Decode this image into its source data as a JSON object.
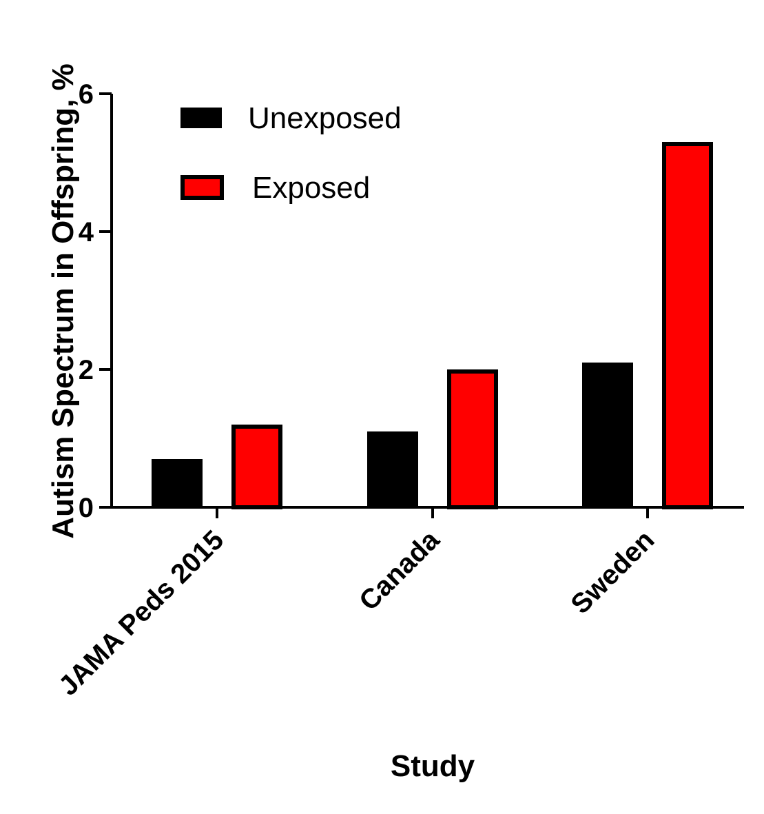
{
  "chart_data": {
    "type": "bar",
    "title": "",
    "xlabel": "Study",
    "ylabel": "Autism  Spectrum in Offspring, %",
    "categories": [
      "JAMA Peds 2015",
      "Canada",
      "Sweden"
    ],
    "series": [
      {
        "name": "Unexposed",
        "values": [
          0.7,
          1.1,
          2.1
        ],
        "color": "#000000",
        "stroke": "#000000"
      },
      {
        "name": "Exposed",
        "values": [
          1.2,
          2.0,
          5.3
        ],
        "color": "#ff0000",
        "stroke": "#000000"
      }
    ],
    "ylim": [
      0,
      6
    ],
    "yticks": [
      0,
      2,
      4,
      6
    ],
    "ytick_labels": [
      "0",
      "2",
      "4",
      "6"
    ],
    "grid": false,
    "legend_position": "top-left"
  }
}
